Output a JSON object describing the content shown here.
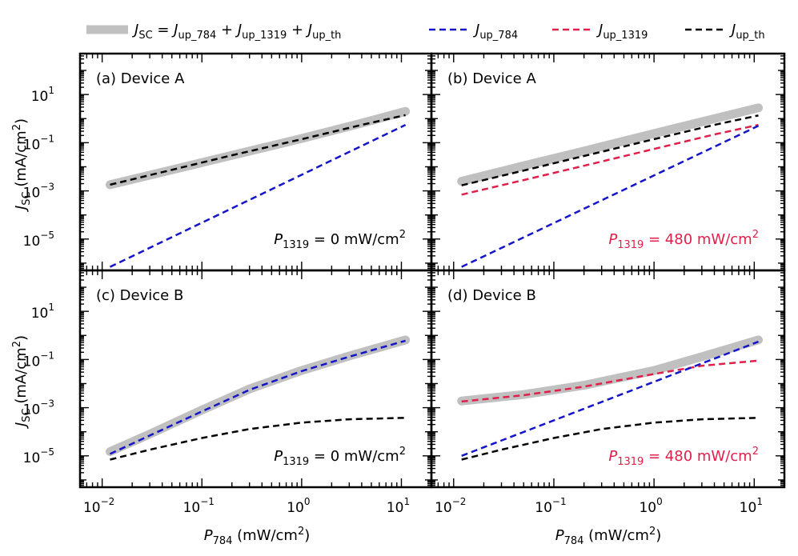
{
  "legend": {
    "total": {
      "main": "J",
      "sub": "SC",
      "eq": " = ",
      "t1": "J",
      "s1": "up_784",
      "plus1": " + ",
      "t2": "J",
      "s2": "up_1319",
      "plus2": " + ",
      "t3": "J",
      "s3": "up_th"
    },
    "up784": {
      "main": "J",
      "sub": "up_784"
    },
    "up1319": {
      "main": "J",
      "sub": "up_1319"
    },
    "upth": {
      "main": "J",
      "sub": "up_th"
    }
  },
  "axes": {
    "xlabel": {
      "main": "P",
      "sub": "784",
      "rest": " (mW/cm",
      "sup": "2",
      "close": ")"
    },
    "ylabel": {
      "main": "J",
      "sub": "SC",
      "rest": " (mA/cm",
      "sup": "2",
      "close": ")"
    },
    "xticks": [
      {
        "base": "10",
        "exp": "−2"
      },
      {
        "base": "10",
        "exp": "−1"
      },
      {
        "base": "10",
        "exp": "0"
      },
      {
        "base": "10",
        "exp": "1"
      }
    ],
    "yticks": [
      {
        "base": "10",
        "exp": "1"
      },
      {
        "base": "10",
        "exp": "−1"
      },
      {
        "base": "10",
        "exp": "−3"
      },
      {
        "base": "10",
        "exp": "−5"
      }
    ]
  },
  "colors": {
    "total": "#c0c0c0",
    "up784": "#1515c8",
    "up1319": "#e0204a",
    "upth": "#000000"
  },
  "chart_data": [
    {
      "type": "line",
      "x_scale": "log",
      "y_scale": "log",
      "xlim": [
        0.006,
        20
      ],
      "ylim": [
        5e-07,
        500
      ],
      "label": "(a) Device A",
      "annotation": {
        "main": "P",
        "sub": "1319",
        "rest": " = 0 mW/cm",
        "sup": "2",
        "color": "#000000"
      },
      "series": [
        {
          "key": "total",
          "x": [
            0.012,
            0.05,
            0.2,
            1.0,
            4.0,
            11
          ],
          "y": [
            0.0018,
            0.0075,
            0.03,
            0.15,
            0.65,
            2.0
          ]
        },
        {
          "key": "up784",
          "x": [
            0.012,
            11
          ],
          "y": [
            7e-07,
            0.55
          ]
        },
        {
          "key": "upth",
          "x": [
            0.012,
            0.05,
            0.2,
            1.0,
            4.0,
            11
          ],
          "y": [
            0.0018,
            0.0075,
            0.03,
            0.14,
            0.55,
            1.4
          ]
        }
      ]
    },
    {
      "type": "line",
      "x_scale": "log",
      "y_scale": "log",
      "xlim": [
        0.006,
        20
      ],
      "ylim": [
        5e-07,
        500
      ],
      "label": "(b) Device A",
      "annotation": {
        "main": "P",
        "sub": "1319",
        "rest": " = 480 mW/cm",
        "sup": "2",
        "color": "#e0204a"
      },
      "series": [
        {
          "key": "total",
          "x": [
            0.012,
            0.05,
            0.2,
            1.0,
            4.0,
            11
          ],
          "y": [
            0.0025,
            0.011,
            0.045,
            0.24,
            1.0,
            2.8
          ]
        },
        {
          "key": "up784",
          "x": [
            0.012,
            11
          ],
          "y": [
            7e-07,
            0.5
          ]
        },
        {
          "key": "up1319",
          "x": [
            0.012,
            0.05,
            0.2,
            1.0,
            4.0,
            11
          ],
          "y": [
            0.0007,
            0.0028,
            0.011,
            0.055,
            0.22,
            0.55
          ]
        },
        {
          "key": "upth",
          "x": [
            0.012,
            0.05,
            0.2,
            1.0,
            4.0,
            11
          ],
          "y": [
            0.0017,
            0.007,
            0.028,
            0.14,
            0.55,
            1.35
          ]
        }
      ]
    },
    {
      "type": "line",
      "x_scale": "log",
      "y_scale": "log",
      "xlim": [
        0.006,
        20
      ],
      "ylim": [
        5e-07,
        500
      ],
      "label": "(c) Device B",
      "annotation": {
        "main": "P",
        "sub": "1319",
        "rest": " = 0 mW/cm",
        "sup": "2",
        "color": "#000000"
      },
      "series": [
        {
          "key": "total",
          "x": [
            0.012,
            0.03,
            0.1,
            0.3,
            1.0,
            3.0,
            11
          ],
          "y": [
            1.5e-05,
            8e-05,
            0.0008,
            0.006,
            0.035,
            0.14,
            0.65
          ]
        },
        {
          "key": "up784",
          "x": [
            0.012,
            0.03,
            0.1,
            0.3,
            1.0,
            3.0,
            11
          ],
          "y": [
            1.2e-05,
            7e-05,
            0.0007,
            0.0055,
            0.033,
            0.13,
            0.6
          ]
        },
        {
          "key": "upth",
          "x": [
            0.012,
            0.03,
            0.1,
            0.3,
            1.0,
            3.0,
            11
          ],
          "y": [
            7e-06,
            1.8e-05,
            5.5e-05,
            0.00013,
            0.00024,
            0.00033,
            0.00038
          ]
        }
      ]
    },
    {
      "type": "line",
      "x_scale": "log",
      "y_scale": "log",
      "xlim": [
        0.006,
        20
      ],
      "ylim": [
        5e-07,
        500
      ],
      "label": "(d) Device B",
      "annotation": {
        "main": "P",
        "sub": "1319",
        "rest": " = 480 mW/cm",
        "sup": "2",
        "color": "#e0204a"
      },
      "series": [
        {
          "key": "total",
          "x": [
            0.012,
            0.05,
            0.2,
            1.0,
            3.0,
            11
          ],
          "y": [
            0.0019,
            0.0035,
            0.0085,
            0.035,
            0.13,
            0.65
          ]
        },
        {
          "key": "up784",
          "x": [
            0.012,
            11
          ],
          "y": [
            1e-05,
            0.55
          ]
        },
        {
          "key": "up1319",
          "x": [
            0.012,
            0.05,
            0.2,
            1.0,
            3.0,
            11
          ],
          "y": [
            0.0018,
            0.0033,
            0.0075,
            0.025,
            0.055,
            0.09
          ]
        },
        {
          "key": "upth",
          "x": [
            0.012,
            0.03,
            0.1,
            0.3,
            1.0,
            3.0,
            11
          ],
          "y": [
            7e-06,
            1.8e-05,
            5.5e-05,
            0.00013,
            0.00024,
            0.00033,
            0.00038
          ]
        }
      ]
    }
  ]
}
